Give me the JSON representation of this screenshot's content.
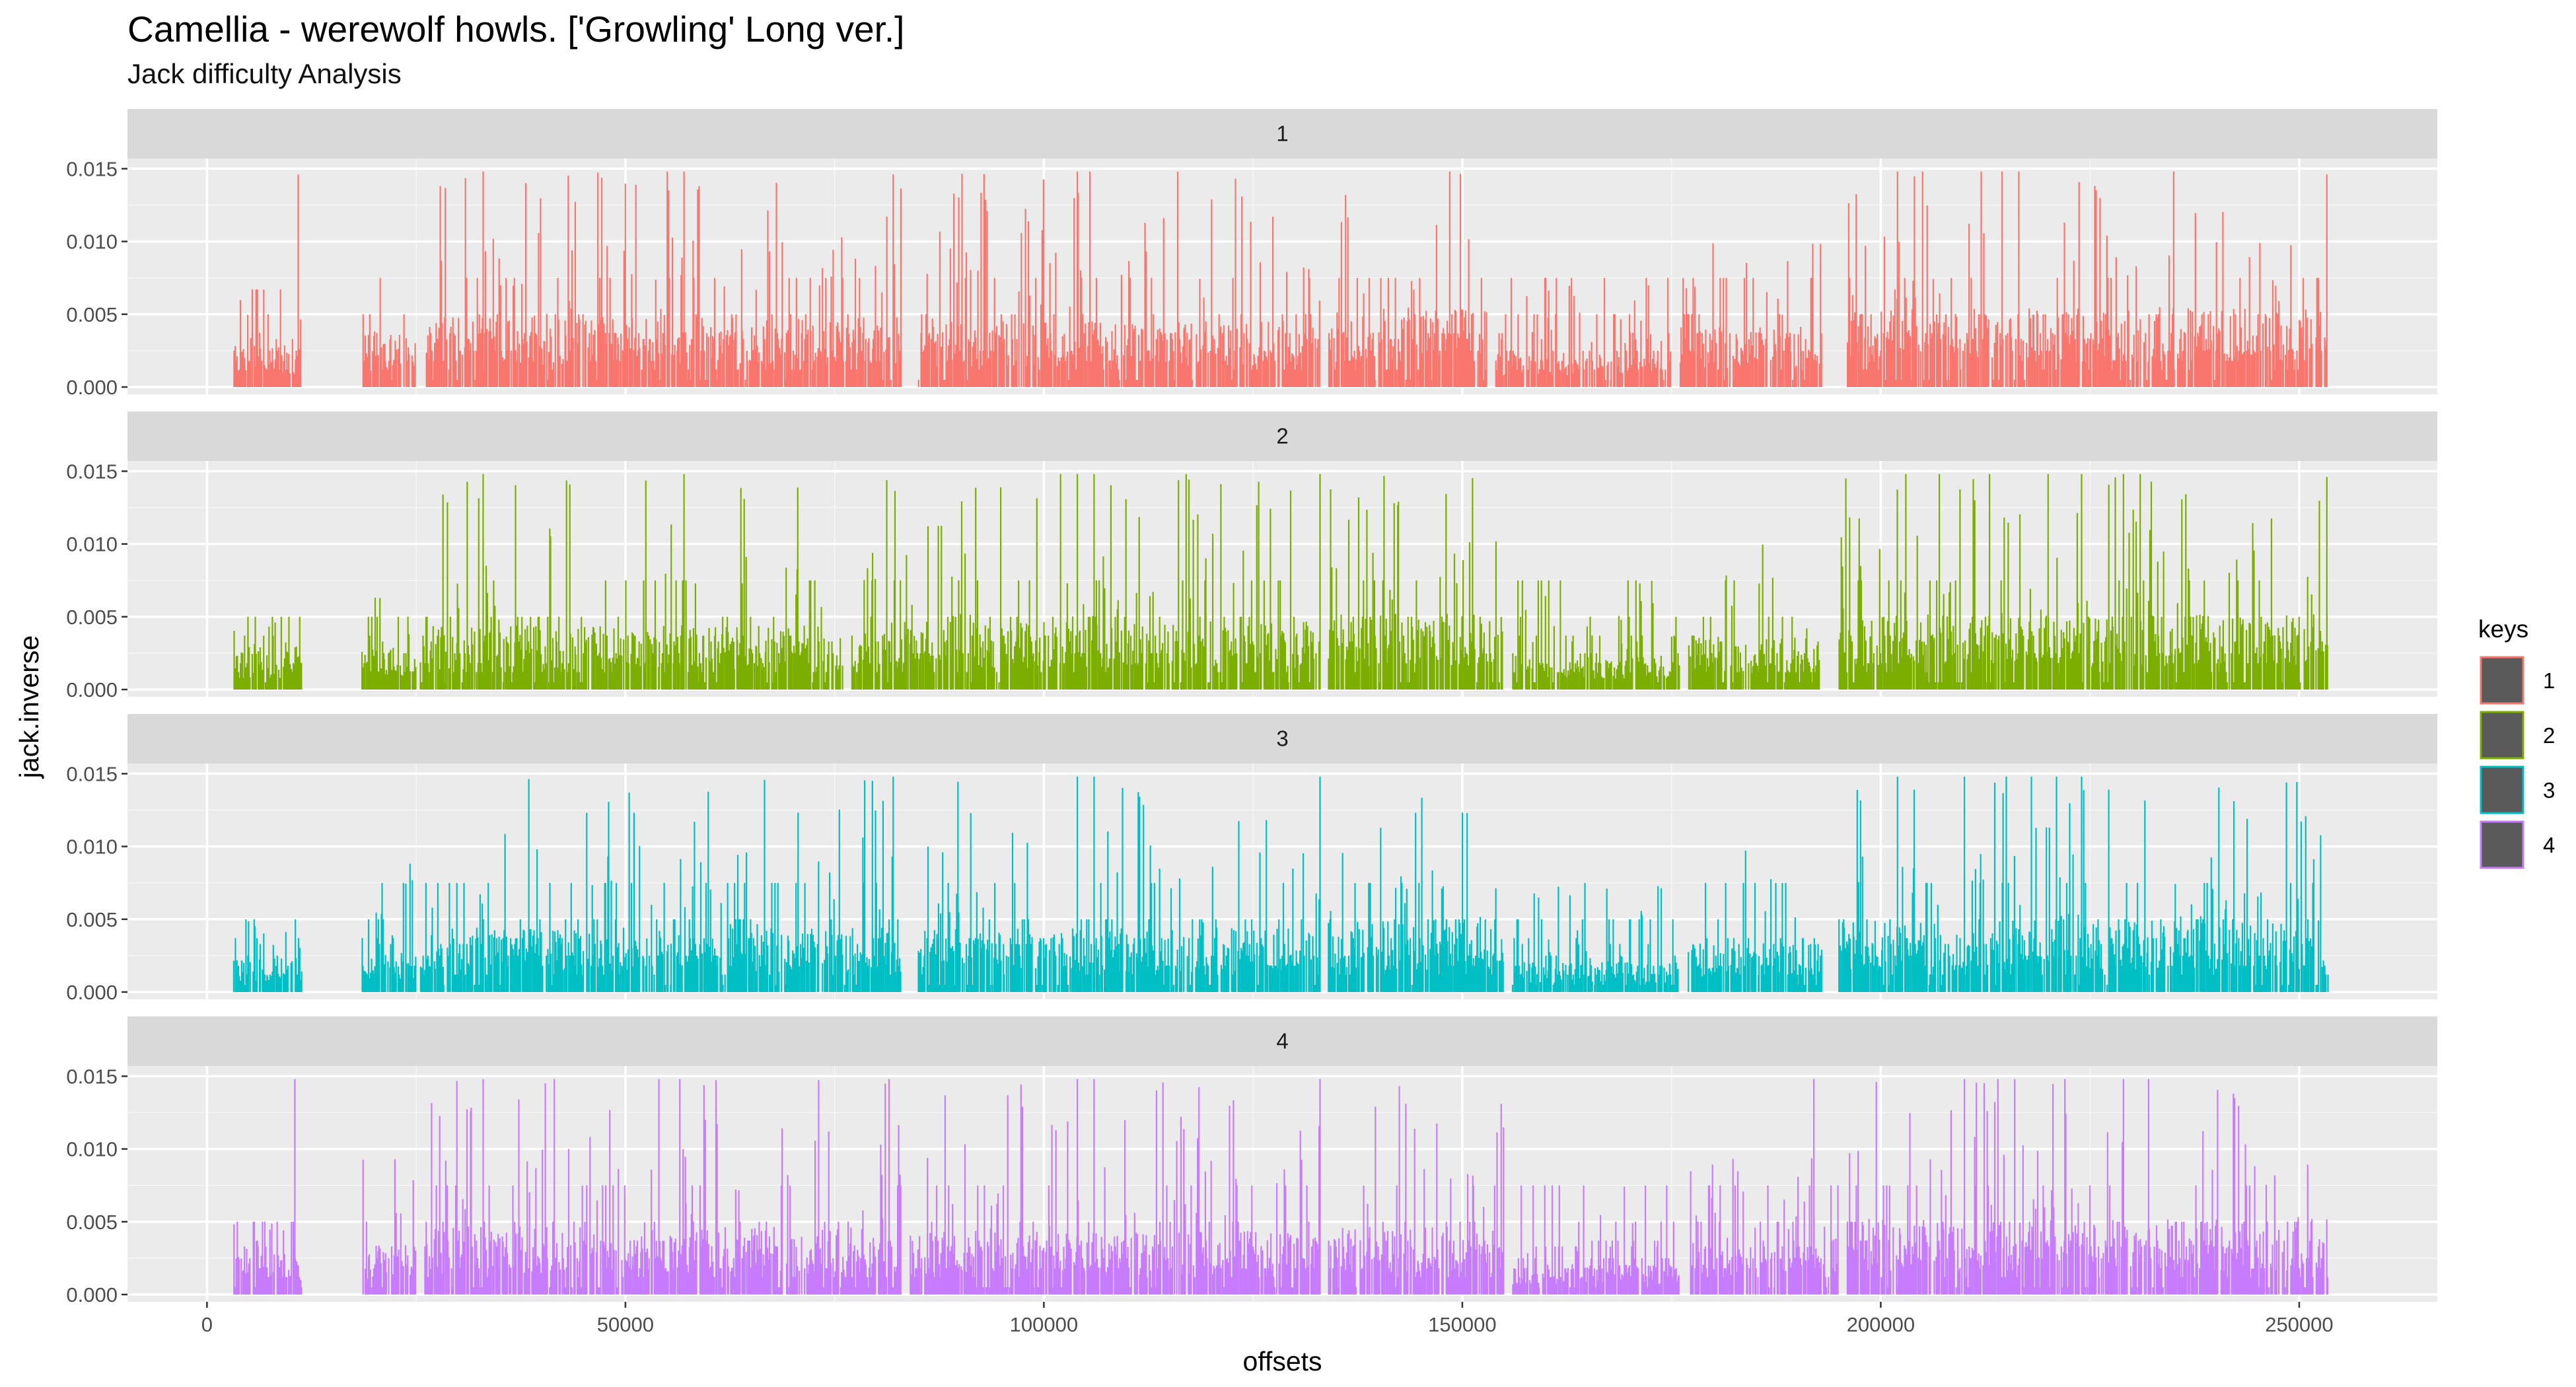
{
  "title": "Camellia - werewolf howls. ['Growling' Long ver.]",
  "subtitle": "Jack difficulty Analysis",
  "chart_data": {
    "type": "bar",
    "facet_by": "keys",
    "facets": [
      "1",
      "2",
      "3",
      "4"
    ],
    "xlabel": "offsets",
    "ylabel": "jack.inverse",
    "xlim": [
      -9500,
      266500
    ],
    "ylim": [
      -0.0005,
      0.0157
    ],
    "x_ticks": [
      0,
      50000,
      100000,
      150000,
      200000,
      250000
    ],
    "y_ticks": [
      0.0,
      0.005,
      0.01,
      0.015
    ],
    "y_tick_labels": [
      "0.000",
      "0.005",
      "0.010",
      "0.015"
    ],
    "legend": {
      "title": "keys",
      "position": "right"
    },
    "grid": true,
    "series": [
      {
        "name": "1",
        "color": "#F8766D",
        "segments": [
          {
            "x_start": 3200,
            "x_end": 11400,
            "typical": 0.0022,
            "peak": 0.0067
          },
          {
            "x_start": 18500,
            "x_end": 25000,
            "typical": 0.0028,
            "peak": 0.0075
          },
          {
            "x_start": 26200,
            "x_end": 83000,
            "typical": 0.0038,
            "peak": 0.0148
          },
          {
            "x_start": 85000,
            "x_end": 133000,
            "typical": 0.0035,
            "peak": 0.0148
          },
          {
            "x_start": 134000,
            "x_end": 153000,
            "typical": 0.0042,
            "peak": 0.0148
          },
          {
            "x_start": 154000,
            "x_end": 175000,
            "typical": 0.0018,
            "peak": 0.0075
          },
          {
            "x_start": 176000,
            "x_end": 193000,
            "typical": 0.0032,
            "peak": 0.01
          },
          {
            "x_start": 196000,
            "x_end": 253500,
            "typical": 0.0042,
            "peak": 0.0148
          }
        ],
        "spikes": [
          [
            10900,
            0.0146
          ],
          [
            33000,
            0.0148
          ],
          [
            55000,
            0.0148
          ],
          [
            57000,
            0.0148
          ],
          [
            82000,
            0.0146
          ],
          [
            104000,
            0.0148
          ],
          [
            105500,
            0.0148
          ],
          [
            116000,
            0.0148
          ],
          [
            148500,
            0.0148
          ],
          [
            202000,
            0.0148
          ],
          [
            205000,
            0.0148
          ],
          [
            212000,
            0.0148
          ],
          [
            214500,
            0.0148
          ],
          [
            216500,
            0.0148
          ],
          [
            235000,
            0.0148
          ],
          [
            253300,
            0.0146
          ]
        ]
      },
      {
        "name": "2",
        "color": "#7CAE00",
        "segments": [
          {
            "x_start": 3200,
            "x_end": 11400,
            "typical": 0.002,
            "peak": 0.005
          },
          {
            "x_start": 18500,
            "x_end": 25000,
            "typical": 0.0022,
            "peak": 0.0075
          },
          {
            "x_start": 25500,
            "x_end": 76000,
            "typical": 0.0034,
            "peak": 0.0148
          },
          {
            "x_start": 77000,
            "x_end": 133000,
            "typical": 0.0036,
            "peak": 0.0148
          },
          {
            "x_start": 134000,
            "x_end": 155000,
            "typical": 0.004,
            "peak": 0.0148
          },
          {
            "x_start": 156000,
            "x_end": 176000,
            "typical": 0.0018,
            "peak": 0.0075
          },
          {
            "x_start": 177000,
            "x_end": 193000,
            "typical": 0.0028,
            "peak": 0.01
          },
          {
            "x_start": 195000,
            "x_end": 253500,
            "typical": 0.004,
            "peak": 0.0148
          }
        ],
        "spikes": [
          [
            33000,
            0.0148
          ],
          [
            57000,
            0.0148
          ],
          [
            102000,
            0.0148
          ],
          [
            104000,
            0.0148
          ],
          [
            106000,
            0.0148
          ],
          [
            117000,
            0.0148
          ],
          [
            133000,
            0.0148
          ],
          [
            203000,
            0.0148
          ],
          [
            207000,
            0.0148
          ],
          [
            213000,
            0.0148
          ],
          [
            220000,
            0.0148
          ],
          [
            224000,
            0.0148
          ],
          [
            229000,
            0.0148
          ],
          [
            231000,
            0.0148
          ],
          [
            253300,
            0.0146
          ]
        ]
      },
      {
        "name": "3",
        "color": "#00BFC4",
        "segments": [
          {
            "x_start": 3200,
            "x_end": 11400,
            "typical": 0.0018,
            "peak": 0.005
          },
          {
            "x_start": 18500,
            "x_end": 25000,
            "typical": 0.0022,
            "peak": 0.01
          },
          {
            "x_start": 25500,
            "x_end": 83000,
            "typical": 0.0034,
            "peak": 0.0148
          },
          {
            "x_start": 85000,
            "x_end": 133000,
            "typical": 0.0034,
            "peak": 0.0148
          },
          {
            "x_start": 134000,
            "x_end": 155000,
            "typical": 0.0038,
            "peak": 0.0148
          },
          {
            "x_start": 156000,
            "x_end": 176000,
            "typical": 0.0016,
            "peak": 0.0075
          },
          {
            "x_start": 177000,
            "x_end": 193000,
            "typical": 0.0026,
            "peak": 0.01
          },
          {
            "x_start": 195000,
            "x_end": 253500,
            "typical": 0.0038,
            "peak": 0.0148
          }
        ],
        "spikes": [
          [
            82000,
            0.0148
          ],
          [
            104000,
            0.0148
          ],
          [
            106000,
            0.0148
          ],
          [
            133000,
            0.0148
          ],
          [
            202000,
            0.0148
          ],
          [
            210000,
            0.0148
          ],
          [
            215000,
            0.0148
          ],
          [
            218000,
            0.0148
          ],
          [
            221000,
            0.0148
          ],
          [
            224000,
            0.0148
          ]
        ]
      },
      {
        "name": "4",
        "color": "#C77CFF",
        "segments": [
          {
            "x_start": 3200,
            "x_end": 11400,
            "typical": 0.0022,
            "peak": 0.005
          },
          {
            "x_start": 18500,
            "x_end": 25000,
            "typical": 0.0026,
            "peak": 0.01
          },
          {
            "x_start": 26000,
            "x_end": 83000,
            "typical": 0.0036,
            "peak": 0.0148
          },
          {
            "x_start": 84000,
            "x_end": 133000,
            "typical": 0.0034,
            "peak": 0.0148
          },
          {
            "x_start": 134000,
            "x_end": 155000,
            "typical": 0.0036,
            "peak": 0.0148
          },
          {
            "x_start": 156000,
            "x_end": 176000,
            "typical": 0.0016,
            "peak": 0.0075
          },
          {
            "x_start": 177000,
            "x_end": 195000,
            "typical": 0.003,
            "peak": 0.01
          },
          {
            "x_start": 196000,
            "x_end": 253500,
            "typical": 0.004,
            "peak": 0.0148
          }
        ],
        "spikes": [
          [
            10500,
            0.0148
          ],
          [
            33000,
            0.0148
          ],
          [
            41500,
            0.0148
          ],
          [
            54000,
            0.0148
          ],
          [
            56500,
            0.0148
          ],
          [
            81500,
            0.0148
          ],
          [
            104000,
            0.0148
          ],
          [
            106000,
            0.0148
          ],
          [
            133000,
            0.0148
          ],
          [
            192000,
            0.0148
          ],
          [
            210000,
            0.0148
          ],
          [
            214000,
            0.0148
          ],
          [
            216000,
            0.0148
          ],
          [
            222000,
            0.0148
          ],
          [
            229000,
            0.0148
          ],
          [
            232000,
            0.0148
          ]
        ]
      }
    ]
  }
}
